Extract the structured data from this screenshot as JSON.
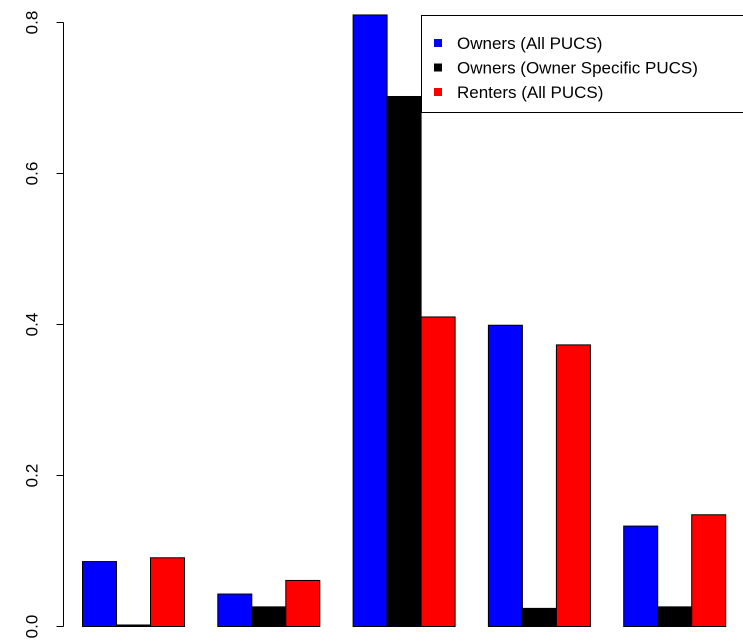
{
  "chart_data": {
    "type": "bar",
    "title": "",
    "xlabel": "",
    "ylabel": "",
    "ylim": [
      0,
      0.8
    ],
    "yticks": [
      "0.0",
      "0.2",
      "0.4",
      "0.6",
      "0.8"
    ],
    "categories": [
      "",
      "",
      "",
      "",
      ""
    ],
    "series": [
      {
        "name": "Owners (All PUCS)",
        "color": "#0000ff",
        "values": [
          0.086,
          0.043,
          0.81,
          0.399,
          0.133
        ]
      },
      {
        "name": "Owners (Owner Specific PUCS)",
        "color": "#000000",
        "values": [
          0.002,
          0.026,
          0.702,
          0.024,
          0.026
        ]
      },
      {
        "name": "Renters (All PUCS)",
        "color": "#ff0000",
        "values": [
          0.091,
          0.061,
          0.41,
          0.373,
          0.148
        ]
      }
    ],
    "legend": {
      "position": "top-right",
      "box": true
    },
    "grid": false
  }
}
